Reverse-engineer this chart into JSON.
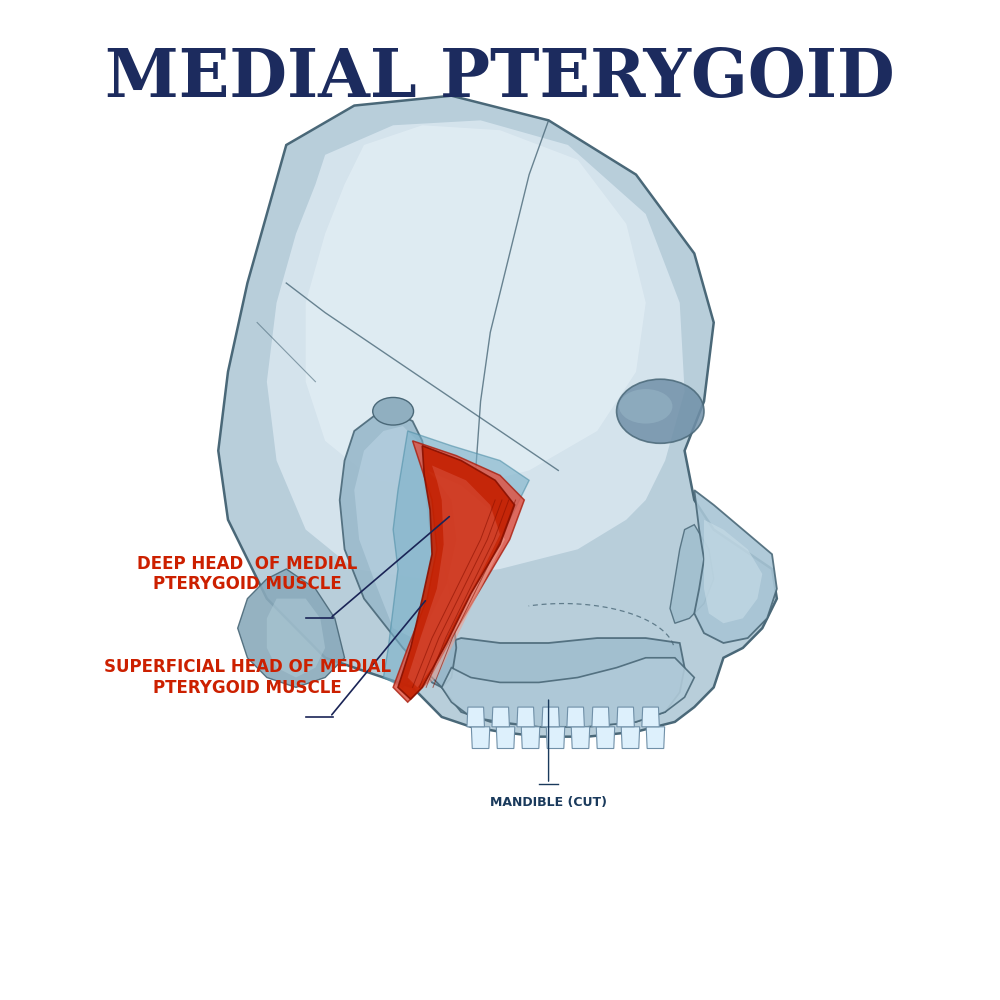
{
  "title": "MEDIAL PTERYGOID",
  "title_color": "#1c2b5e",
  "title_fontsize": 48,
  "background_color": "#ffffff",
  "skull_base_color": "#b8ceda",
  "skull_light_color": "#d0e2ee",
  "skull_lighter_color": "#e0ecf5",
  "skull_edge_color": "#4a6878",
  "skull_shadow_color": "#8aaabb",
  "muscle_deep_color": "#c42000",
  "muscle_deep_edge": "#8a1000",
  "muscle_super_color": "#e05040",
  "muscle_super_light": "#f09080",
  "muscle_super_edge": "#aa2010",
  "muscle_backing_color": "#7ab0c8",
  "label_red": "#cc2000",
  "label_navy": "#1a3a5c",
  "label_deep": "DEEP HEAD  OF MEDIAL\nPTERYGOID MUSCLE",
  "label_superficial": "SUPERFICIAL HEAD OF MEDIAL\nPTERYGOID MUSCLE",
  "label_mandible": "MANDIBLE (CUT)",
  "label_fontsize": 12,
  "label_mandible_fontsize": 9
}
